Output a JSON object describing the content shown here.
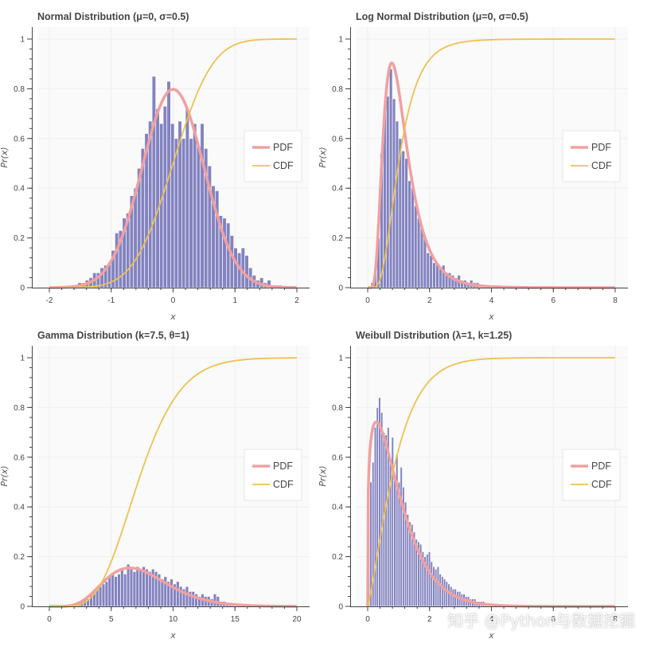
{
  "watermark": "知乎 @Python与数据挖掘",
  "colors": {
    "hist": "#6d6db5",
    "pdf": "#f0a0a0",
    "cdf": "#f0c050",
    "plot_bg": "#fafafa",
    "grid": "#eeeeee"
  },
  "chart_data": [
    {
      "type": "bar",
      "title": "Normal Distribution (μ=0, σ=0.5)",
      "xlabel": "x",
      "ylabel": "Pr(x)",
      "xlim": [
        -2,
        2
      ],
      "ylim": [
        0,
        1
      ],
      "xticks": [
        "-2",
        "-1",
        "0",
        "1",
        "2"
      ],
      "yticks": [
        "0",
        "0.2",
        "0.4",
        "0.6",
        "0.8",
        "1"
      ],
      "legend": {
        "position": "right",
        "entries": [
          "PDF",
          "CDF"
        ]
      },
      "hist": {
        "name": "histogram",
        "bin_start": -1.6,
        "bin_width": 0.06,
        "values": [
          0.01,
          0.02,
          0.02,
          0.03,
          0.04,
          0.06,
          0.06,
          0.08,
          0.09,
          0.1,
          0.15,
          0.22,
          0.23,
          0.28,
          0.3,
          0.37,
          0.4,
          0.48,
          0.56,
          0.62,
          0.67,
          0.85,
          0.72,
          0.66,
          0.73,
          0.83,
          0.66,
          0.6,
          0.67,
          0.6,
          0.72,
          0.6,
          0.66,
          0.57,
          0.66,
          0.56,
          0.49,
          0.41,
          0.39,
          0.29,
          0.28,
          0.26,
          0.21,
          0.16,
          0.14,
          0.16,
          0.13,
          0.08,
          0.05,
          0.03,
          0.04,
          0.02,
          0.03,
          0.01,
          0.01,
          0.01
        ]
      },
      "pdf": {
        "name": "PDF",
        "distribution": "normal",
        "mu": 0,
        "sigma": 0.5
      },
      "cdf": {
        "name": "CDF",
        "distribution": "normal",
        "mu": 0,
        "sigma": 0.5
      }
    },
    {
      "type": "bar",
      "title": "Log Normal Distribution (μ=0, σ=0.5)",
      "xlabel": "x",
      "ylabel": "Pr(x)",
      "xlim": [
        0,
        8
      ],
      "ylim": [
        0,
        1
      ],
      "xticks": [
        "0",
        "2",
        "4",
        "6",
        "8"
      ],
      "yticks": [
        "0",
        "0.2",
        "0.4",
        "0.6",
        "0.8",
        "1"
      ],
      "legend": {
        "position": "right",
        "entries": [
          "PDF",
          "CDF"
        ]
      },
      "hist": {
        "name": "histogram",
        "bin_start": 0.1,
        "bin_width": 0.1,
        "values": [
          0.02,
          0.06,
          0.2,
          0.54,
          0.72,
          0.77,
          0.88,
          0.76,
          0.67,
          0.6,
          0.55,
          0.52,
          0.43,
          0.4,
          0.33,
          0.28,
          0.25,
          0.2,
          0.14,
          0.13,
          0.1,
          0.1,
          0.08,
          0.09,
          0.06,
          0.06,
          0.05,
          0.04,
          0.05,
          0.03,
          0.03,
          0.02,
          0.03,
          0.02,
          0.02,
          0.01,
          0.01,
          0.01,
          0.01,
          0.01,
          0.01,
          0.01
        ]
      },
      "pdf": {
        "name": "PDF",
        "distribution": "lognormal",
        "mu": 0,
        "sigma": 0.5
      },
      "cdf": {
        "name": "CDF",
        "distribution": "lognormal",
        "mu": 0,
        "sigma": 0.5
      }
    },
    {
      "type": "bar",
      "title": "Gamma Distribution (k=7.5, θ=1)",
      "xlabel": "x",
      "ylabel": "Pr(x)",
      "xlim": [
        0,
        20
      ],
      "ylim": [
        0,
        1
      ],
      "xticks": [
        "0",
        "5",
        "10",
        "15",
        "20"
      ],
      "yticks": [
        "0",
        "0.2",
        "0.4",
        "0.6",
        "0.8",
        "1"
      ],
      "legend": {
        "position": "right",
        "entries": [
          "PDF",
          "CDF"
        ]
      },
      "hist": {
        "name": "histogram",
        "bin_start": 2.0,
        "bin_width": 0.25,
        "values": [
          0.005,
          0.01,
          0.02,
          0.03,
          0.03,
          0.05,
          0.06,
          0.07,
          0.08,
          0.09,
          0.1,
          0.12,
          0.13,
          0.12,
          0.13,
          0.15,
          0.13,
          0.17,
          0.15,
          0.14,
          0.16,
          0.15,
          0.16,
          0.15,
          0.14,
          0.15,
          0.14,
          0.13,
          0.11,
          0.12,
          0.1,
          0.11,
          0.09,
          0.1,
          0.08,
          0.07,
          0.08,
          0.06,
          0.06,
          0.05,
          0.04,
          0.05,
          0.04,
          0.04,
          0.03,
          0.05,
          0.04,
          0.02,
          0.02,
          0.01,
          0.01,
          0.01,
          0.01,
          0.005
        ]
      },
      "pdf": {
        "name": "PDF",
        "distribution": "gamma",
        "k": 7.5,
        "theta": 1
      },
      "cdf": {
        "name": "CDF",
        "distribution": "gamma",
        "k": 7.5,
        "theta": 1
      }
    },
    {
      "type": "bar",
      "title": "Weibull Distribution (λ=1, k=1.25)",
      "xlabel": "x",
      "ylabel": "Pr(x)",
      "xlim": [
        0,
        8
      ],
      "ylim": [
        0,
        1
      ],
      "xticks": [
        "0",
        "2",
        "4",
        "6",
        "8"
      ],
      "yticks": [
        "0",
        "0.2",
        "0.4",
        "0.6",
        "0.8",
        "1"
      ],
      "legend": {
        "position": "right",
        "entries": [
          "PDF",
          "CDF"
        ]
      },
      "hist": {
        "name": "histogram",
        "bin_start": 0.0,
        "bin_width": 0.07,
        "values": [
          0.4,
          0.5,
          0.58,
          0.72,
          0.8,
          0.84,
          0.78,
          0.7,
          0.69,
          0.72,
          0.6,
          0.68,
          0.52,
          0.61,
          0.5,
          0.56,
          0.48,
          0.42,
          0.37,
          0.34,
          0.33,
          0.3,
          0.27,
          0.26,
          0.25,
          0.22,
          0.2,
          0.21,
          0.22,
          0.18,
          0.16,
          0.15,
          0.16,
          0.13,
          0.12,
          0.11,
          0.1,
          0.09,
          0.08,
          0.07,
          0.07,
          0.06,
          0.06,
          0.05,
          0.05,
          0.04,
          0.04,
          0.03,
          0.03,
          0.03,
          0.02,
          0.02,
          0.02,
          0.02,
          0.01,
          0.01,
          0.01,
          0.01,
          0.01,
          0.01
        ]
      },
      "pdf": {
        "name": "PDF",
        "distribution": "weibull",
        "lambda": 1,
        "k": 1.25
      },
      "cdf": {
        "name": "CDF",
        "distribution": "weibull",
        "lambda": 1,
        "k": 1.25
      }
    }
  ]
}
